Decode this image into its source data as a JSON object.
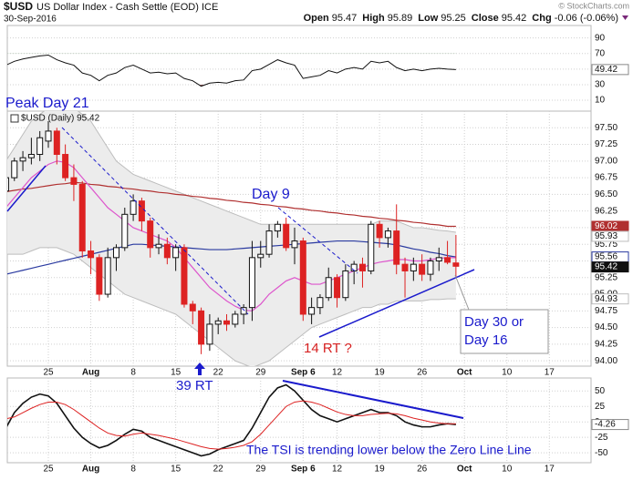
{
  "header": {
    "symbol": "$USD",
    "name": "US Dollar Index - Cash Settle (EOD) ICE",
    "date": "30-Sep-2016",
    "watermark": "© StockCharts.com",
    "stats": [
      {
        "label": "Open",
        "value": 95.47
      },
      {
        "label": "High",
        "value": 95.89
      },
      {
        "label": "Low",
        "value": 95.25
      },
      {
        "label": "Close",
        "value": 95.42
      },
      {
        "label": "Chg",
        "value": "-0.06 (-0.06%)"
      }
    ]
  },
  "chart_data": [
    {
      "type": "line",
      "color": "#111111",
      "values": [
        55,
        60,
        63,
        65,
        67,
        68,
        62,
        58,
        55,
        45,
        42,
        35,
        42,
        45,
        52,
        55,
        50,
        45,
        46,
        44,
        45,
        38,
        35,
        28,
        32,
        33,
        32,
        35,
        36,
        48,
        50,
        56,
        62,
        58,
        55,
        38,
        40,
        42,
        48,
        45,
        50,
        52,
        50,
        60,
        58,
        60,
        52,
        48,
        50,
        48,
        50,
        51,
        50,
        49.42,
        null,
        null,
        null,
        null,
        null,
        null,
        null,
        null,
        null,
        null,
        null,
        null,
        null,
        null,
        null
      ],
      "ylim": [
        -4,
        106
      ],
      "yticks": [
        10,
        30,
        50,
        70,
        90
      ],
      "grid": true,
      "overbought": 70,
      "oversold": 30,
      "overbought_color": "#5f9a5f",
      "oversold_color": "#9a6060"
    },
    {
      "type": "candlestick",
      "legend": "$USD (Daily) 95.42",
      "categories": [
        null,
        null,
        null,
        null,
        null,
        "25",
        null,
        null,
        null,
        null,
        "Aug",
        null,
        null,
        null,
        null,
        "8",
        null,
        null,
        null,
        null,
        "15",
        null,
        null,
        null,
        null,
        "22",
        null,
        null,
        null,
        null,
        "29",
        null,
        null,
        null,
        null,
        "Sep 6",
        null,
        null,
        null,
        "12",
        null,
        null,
        null,
        null,
        "19",
        null,
        null,
        null,
        null,
        "26",
        null,
        null,
        null,
        null,
        "Oct",
        null,
        null,
        null,
        null,
        "10",
        null,
        null,
        null,
        null,
        "17",
        null,
        null,
        null,
        null
      ],
      "open": [
        96.55,
        96.75,
        97.0,
        97.05,
        97.1,
        97.3,
        97.45,
        97.1,
        96.75,
        96.65,
        95.65,
        95.55,
        95.0,
        95.55,
        95.7,
        96.2,
        96.4,
        96.1,
        95.7,
        95.75,
        95.55,
        95.7,
        94.85,
        94.75,
        94.25,
        94.55,
        94.6,
        94.55,
        94.7,
        94.8,
        95.55,
        95.6,
        95.95,
        96.05,
        95.7,
        95.8,
        94.7,
        94.8,
        94.95,
        95.25,
        94.95,
        95.35,
        95.45,
        95.35,
        96.05,
        95.85,
        95.95,
        95.45,
        95.35,
        95.45,
        95.3,
        95.5,
        95.55,
        95.47,
        null,
        null,
        null,
        null,
        null,
        null,
        null,
        null,
        null,
        null,
        null,
        null,
        null,
        null,
        null
      ],
      "high": [
        96.8,
        97.05,
        97.15,
        97.35,
        97.45,
        97.6,
        97.5,
        97.25,
        96.95,
        96.7,
        95.8,
        95.6,
        95.7,
        95.75,
        96.3,
        96.5,
        96.45,
        96.15,
        95.9,
        95.85,
        95.75,
        95.75,
        94.9,
        94.8,
        94.7,
        94.65,
        94.7,
        94.75,
        94.85,
        95.8,
        95.8,
        96.05,
        96.1,
        96.15,
        96.0,
        95.85,
        94.95,
        95.0,
        95.4,
        95.3,
        95.45,
        95.5,
        95.55,
        96.1,
        96.1,
        96.0,
        96.35,
        95.55,
        95.55,
        95.6,
        95.55,
        95.7,
        95.8,
        95.89,
        null,
        null,
        null,
        null,
        null,
        null,
        null,
        null,
        null,
        null,
        null,
        null,
        null,
        null,
        null
      ],
      "low": [
        96.45,
        96.7,
        96.85,
        96.95,
        97.0,
        97.2,
        96.95,
        96.7,
        96.4,
        95.55,
        95.3,
        94.9,
        94.95,
        95.35,
        95.65,
        96.1,
        95.95,
        95.55,
        95.6,
        95.45,
        95.35,
        94.8,
        94.55,
        94.1,
        94.15,
        94.4,
        94.45,
        94.5,
        94.55,
        94.6,
        95.4,
        95.55,
        95.85,
        95.65,
        95.45,
        94.6,
        94.55,
        94.7,
        94.9,
        94.8,
        94.9,
        95.15,
        95.1,
        95.3,
        95.7,
        95.7,
        95.3,
        94.95,
        95.2,
        95.2,
        95.2,
        95.35,
        95.45,
        95.25,
        null,
        null,
        null,
        null,
        null,
        null,
        null,
        null,
        null,
        null,
        null,
        null,
        null,
        null,
        null
      ],
      "close": [
        96.75,
        97.0,
        97.05,
        97.1,
        97.35,
        97.45,
        97.1,
        96.75,
        96.65,
        95.65,
        95.55,
        95.0,
        95.55,
        95.7,
        96.2,
        96.4,
        96.1,
        95.7,
        95.75,
        95.55,
        95.7,
        94.85,
        94.75,
        94.25,
        94.55,
        94.6,
        94.55,
        94.7,
        94.8,
        95.55,
        95.6,
        95.95,
        96.05,
        95.7,
        95.8,
        94.7,
        94.8,
        94.95,
        95.25,
        94.95,
        95.35,
        95.45,
        95.35,
        96.05,
        95.85,
        95.95,
        95.45,
        95.35,
        95.45,
        95.3,
        95.5,
        95.55,
        95.48,
        95.42,
        null,
        null,
        null,
        null,
        null,
        null,
        null,
        null,
        null,
        null,
        null,
        null,
        null,
        null,
        null
      ],
      "up_color": "#111111",
      "down_color": "#dd2222",
      "band": {
        "color": "#bdbdbd",
        "upper": [
          97.0,
          97.2,
          97.4,
          97.6,
          97.7,
          97.8,
          97.85,
          97.85,
          97.8,
          97.7,
          97.6,
          97.4,
          97.2,
          97.0,
          96.9,
          96.8,
          96.75,
          96.7,
          96.65,
          96.6,
          96.55,
          96.5,
          96.45,
          96.4,
          96.35,
          96.3,
          96.25,
          96.2,
          96.15,
          96.1,
          96.05,
          96.05,
          96.05,
          96.05,
          96.05,
          96.05,
          96.05,
          96.05,
          96.05,
          96.05,
          96.05,
          96.05,
          96.05,
          96.05,
          96.1,
          96.1,
          96.1,
          96.05,
          96.0,
          96.0,
          95.98,
          95.96,
          95.95,
          95.93,
          null,
          null,
          null,
          null,
          null,
          null,
          null,
          null,
          null,
          null,
          null,
          null,
          null,
          null,
          null
        ],
        "lower": [
          95.6,
          95.6,
          95.6,
          95.65,
          95.7,
          95.7,
          95.7,
          95.65,
          95.6,
          95.5,
          95.4,
          95.3,
          95.2,
          95.1,
          95.0,
          94.95,
          94.9,
          94.85,
          94.8,
          94.75,
          94.7,
          94.6,
          94.5,
          94.4,
          94.3,
          94.2,
          94.1,
          94.0,
          93.95,
          93.9,
          93.95,
          94.0,
          94.1,
          94.2,
          94.3,
          94.4,
          94.5,
          94.55,
          94.6,
          94.65,
          94.7,
          94.75,
          94.8,
          94.8,
          94.85,
          94.85,
          94.9,
          94.9,
          94.9,
          94.9,
          94.92,
          94.92,
          94.93,
          94.93,
          null,
          null,
          null,
          null,
          null,
          null,
          null,
          null,
          null,
          null,
          null,
          null,
          null,
          null,
          null
        ]
      },
      "lines": [
        {
          "color": "#b03030",
          "values": [
            96.54,
            96.56,
            96.58,
            96.59,
            96.61,
            96.63,
            96.65,
            96.66,
            96.68,
            96.67,
            96.65,
            96.64,
            96.62,
            96.61,
            96.59,
            96.58,
            96.56,
            96.55,
            96.53,
            96.52,
            96.5,
            96.49,
            96.47,
            96.46,
            96.44,
            96.43,
            96.41,
            96.4,
            96.38,
            96.37,
            96.35,
            96.34,
            96.32,
            96.31,
            96.29,
            96.28,
            96.26,
            96.25,
            96.23,
            96.22,
            96.2,
            96.19,
            96.17,
            96.16,
            96.14,
            96.13,
            96.11,
            96.1,
            96.08,
            96.07,
            96.05,
            96.04,
            96.02,
            96.02,
            null,
            null,
            null,
            null,
            null,
            null,
            null,
            null,
            null,
            null,
            null,
            null,
            null,
            null,
            null
          ]
        },
        {
          "color": "#2a3aa0",
          "values": [
            95.3,
            95.33,
            95.36,
            95.39,
            95.42,
            95.45,
            95.48,
            95.51,
            95.54,
            95.57,
            95.6,
            95.63,
            95.66,
            95.69,
            95.72,
            95.75,
            95.75,
            95.74,
            95.73,
            95.72,
            95.71,
            95.7,
            95.69,
            95.68,
            95.67,
            95.67,
            95.67,
            95.68,
            95.69,
            95.7,
            95.71,
            95.72,
            95.73,
            95.74,
            95.75,
            95.76,
            95.77,
            95.78,
            95.79,
            95.8,
            95.8,
            95.8,
            95.79,
            95.78,
            95.77,
            95.76,
            95.74,
            95.71,
            95.68,
            95.66,
            95.63,
            95.61,
            95.58,
            95.56,
            null,
            null,
            null,
            null,
            null,
            null,
            null,
            null,
            null,
            null,
            null,
            null,
            null,
            null,
            null
          ]
        },
        {
          "color": "#dd55cc",
          "values": [
            96.3,
            96.45,
            96.6,
            96.75,
            96.85,
            96.95,
            97.0,
            96.98,
            96.9,
            96.75,
            96.6,
            96.45,
            96.3,
            96.2,
            96.1,
            96.0,
            95.95,
            95.9,
            95.85,
            95.8,
            95.7,
            95.55,
            95.4,
            95.25,
            95.1,
            95.0,
            94.9,
            94.82,
            94.76,
            94.75,
            94.85,
            95.0,
            95.1,
            95.2,
            95.25,
            95.2,
            95.15,
            95.15,
            95.2,
            95.25,
            95.3,
            95.35,
            95.4,
            95.45,
            95.48,
            95.5,
            95.52,
            95.52,
            95.5,
            95.5,
            95.52,
            95.54,
            95.55,
            95.55,
            null,
            null,
            null,
            null,
            null,
            null,
            null,
            null,
            null,
            null,
            null,
            null,
            null,
            null,
            null
          ]
        }
      ],
      "ylim": [
        93.92,
        97.75
      ],
      "yticks": [
        {
          "value": 94,
          "label": "94.00"
        },
        {
          "value": 94.25,
          "label": "94.25"
        },
        {
          "value": 94.5,
          "label": "94.50"
        },
        {
          "value": 94.75,
          "label": "94.75"
        },
        {
          "value": 95,
          "label": "95.00"
        },
        {
          "value": 95.25,
          "label": "95.25"
        },
        {
          "value": 95.5,
          "label": "95.50"
        },
        {
          "value": 95.75,
          "label": "95.75"
        },
        {
          "value": 96,
          "label": "96.00"
        },
        {
          "value": 96.25,
          "label": "96.25"
        },
        {
          "value": 96.5,
          "label": "96.50"
        },
        {
          "value": 96.75,
          "label": "96.75"
        },
        {
          "value": 97,
          "label": "97.00"
        },
        {
          "value": 97.25,
          "label": "97.25"
        },
        {
          "value": 97.5,
          "label": "97.50"
        }
      ],
      "grid": true,
      "annotations": [
        "Peak Day 21",
        "Day 9",
        "14 RT ?",
        "39 RT",
        "Day 30  or",
        "Day 16"
      ]
    },
    {
      "type": "line",
      "categories": [
        null,
        null,
        null,
        null,
        null,
        "25",
        null,
        null,
        null,
        null,
        "Aug",
        null,
        null,
        null,
        null,
        "8",
        null,
        null,
        null,
        null,
        "15",
        null,
        null,
        null,
        null,
        "22",
        null,
        null,
        null,
        null,
        "29",
        null,
        null,
        null,
        null,
        "Sep 6",
        null,
        null,
        null,
        "12",
        null,
        null,
        null,
        null,
        "19",
        null,
        null,
        null,
        null,
        "26",
        null,
        null,
        null,
        null,
        "Oct",
        null,
        null,
        null,
        null,
        "10",
        null,
        null,
        null,
        null,
        "17",
        null,
        null,
        null,
        null
      ],
      "lines": [
        {
          "color": "#111111",
          "values": [
            -10,
            15,
            30,
            40,
            45,
            42,
            30,
            10,
            -10,
            -25,
            -35,
            -42,
            -38,
            -30,
            -20,
            -12,
            -15,
            -25,
            -30,
            -35,
            -40,
            -45,
            -50,
            -55,
            -52,
            -45,
            -40,
            -35,
            -30,
            -10,
            15,
            40,
            55,
            60,
            50,
            35,
            20,
            10,
            5,
            0,
            5,
            10,
            15,
            20,
            15,
            15,
            10,
            0,
            -5,
            -8,
            -8,
            -5,
            -3,
            -4.26,
            null,
            null,
            null,
            null,
            null,
            null,
            null,
            null,
            null,
            null,
            null,
            null,
            null,
            null,
            null
          ]
        },
        {
          "color": "#dd2222",
          "values": [
            5,
            8,
            15,
            22,
            28,
            32,
            32,
            28,
            20,
            10,
            0,
            -10,
            -18,
            -22,
            -23,
            -20,
            -18,
            -20,
            -22,
            -25,
            -28,
            -32,
            -36,
            -40,
            -43,
            -44,
            -43,
            -41,
            -38,
            -32,
            -20,
            -5,
            10,
            25,
            32,
            34,
            32,
            28,
            22,
            16,
            12,
            10,
            10,
            12,
            13,
            14,
            13,
            10,
            6,
            3,
            0,
            -2,
            -3,
            -3,
            null,
            null,
            null,
            null,
            null,
            null,
            null,
            null,
            null,
            null,
            null,
            null,
            null,
            null,
            null
          ]
        }
      ],
      "ylim": [
        -66,
        71
      ],
      "yticks": [
        -50,
        -25,
        0,
        25,
        50
      ],
      "grid": true,
      "annotation": "The TSI is trending lower below the Zero Line Line"
    }
  ]
}
